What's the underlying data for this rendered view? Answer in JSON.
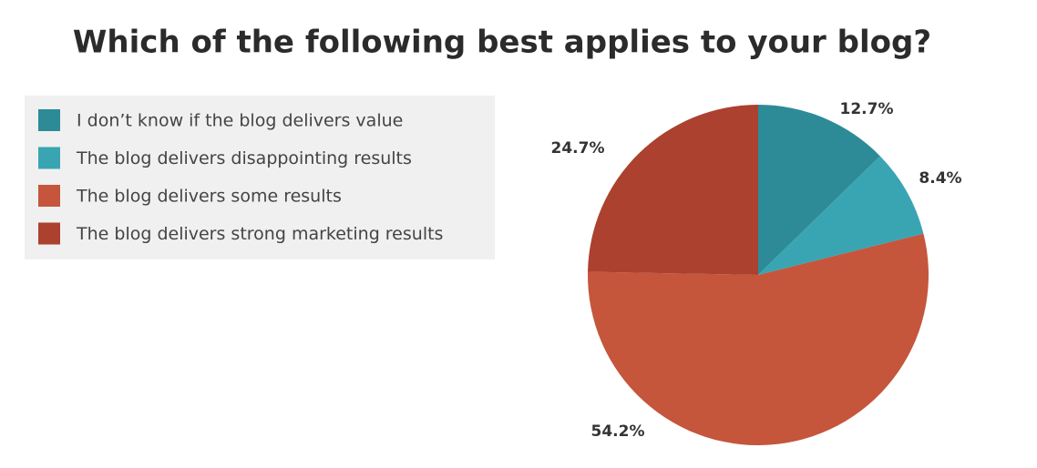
{
  "chart_data": {
    "type": "pie",
    "title": "Which of the following best applies to your blog?",
    "categories": [
      "I don’t know if the blog delivers value",
      "The blog delivers disappointing results",
      "The blog delivers some results",
      "The blog delivers strong marketing results"
    ],
    "values": [
      12.7,
      8.4,
      54.2,
      24.7
    ],
    "value_labels": [
      "12.7%",
      "8.4%",
      "54.2%",
      "24.7%"
    ],
    "colors": [
      "#2d8b98",
      "#39a5b2",
      "#c5553b",
      "#ab412e"
    ]
  }
}
